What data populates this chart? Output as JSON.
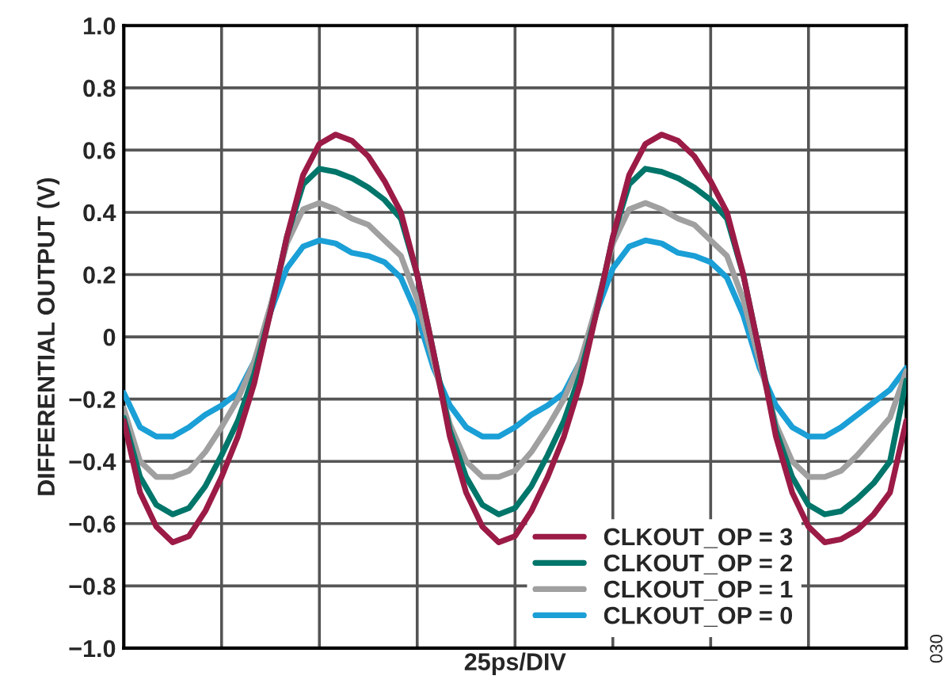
{
  "chart_data": {
    "type": "line",
    "xlabel": "25ps/DIV",
    "ylabel": "DIFFERENTIAL OUTPUT (V)",
    "annotations": [
      "030"
    ],
    "categories": [
      null,
      null,
      null,
      null,
      null,
      null,
      null,
      null,
      null,
      null,
      null,
      null,
      null,
      null,
      null,
      null,
      null,
      null,
      null,
      null,
      null,
      null,
      null,
      null,
      null,
      null,
      null,
      null,
      null,
      null,
      null,
      null,
      null,
      null,
      null,
      null,
      null,
      null,
      null,
      null,
      null,
      null,
      null,
      null,
      null,
      null,
      null,
      null,
      null
    ],
    "series": [
      {
        "name": "CLKOUT_OP = 3",
        "color": "#9b1b46",
        "values": [
          -0.27,
          -0.5,
          -0.61,
          -0.66,
          -0.64,
          -0.56,
          -0.45,
          -0.32,
          -0.15,
          0.08,
          0.32,
          0.52,
          0.62,
          0.65,
          0.63,
          0.58,
          0.5,
          0.4,
          0.2,
          -0.05,
          -0.32,
          -0.5,
          -0.61,
          -0.66,
          -0.64,
          -0.56,
          -0.45,
          -0.32,
          -0.15,
          0.08,
          0.32,
          0.52,
          0.62,
          0.65,
          0.63,
          0.58,
          0.5,
          0.4,
          0.2,
          -0.05,
          -0.32,
          -0.5,
          -0.61,
          -0.66,
          -0.65,
          -0.62,
          -0.57,
          -0.5,
          -0.27
        ]
      },
      {
        "name": "CLKOUT_OP = 2",
        "color": "#00756a",
        "values": [
          -0.26,
          -0.45,
          -0.54,
          -0.57,
          -0.55,
          -0.48,
          -0.38,
          -0.27,
          -0.12,
          0.08,
          0.32,
          0.49,
          0.54,
          0.53,
          0.51,
          0.48,
          0.44,
          0.38,
          0.2,
          -0.05,
          -0.3,
          -0.45,
          -0.54,
          -0.57,
          -0.55,
          -0.48,
          -0.38,
          -0.27,
          -0.12,
          0.08,
          0.32,
          0.49,
          0.54,
          0.53,
          0.51,
          0.48,
          0.44,
          0.38,
          0.2,
          -0.05,
          -0.3,
          -0.45,
          -0.54,
          -0.57,
          -0.56,
          -0.52,
          -0.47,
          -0.4,
          -0.14
        ]
      },
      {
        "name": "CLKOUT_OP = 1",
        "color": "#a0a0a0",
        "values": [
          -0.23,
          -0.4,
          -0.45,
          -0.45,
          -0.43,
          -0.37,
          -0.29,
          -0.2,
          -0.08,
          0.1,
          0.3,
          0.41,
          0.43,
          0.41,
          0.38,
          0.36,
          0.31,
          0.26,
          0.12,
          -0.08,
          -0.28,
          -0.4,
          -0.45,
          -0.45,
          -0.43,
          -0.37,
          -0.29,
          -0.2,
          -0.08,
          0.1,
          0.3,
          0.41,
          0.43,
          0.41,
          0.38,
          0.36,
          0.31,
          0.26,
          0.12,
          -0.08,
          -0.28,
          -0.4,
          -0.45,
          -0.45,
          -0.43,
          -0.38,
          -0.32,
          -0.26,
          -0.11
        ]
      },
      {
        "name": "CLKOUT_OP = 0",
        "color": "#1a9fd6",
        "values": [
          -0.18,
          -0.29,
          -0.32,
          -0.32,
          -0.29,
          -0.25,
          -0.22,
          -0.18,
          -0.08,
          0.08,
          0.22,
          0.29,
          0.31,
          0.3,
          0.27,
          0.26,
          0.24,
          0.19,
          0.07,
          -0.1,
          -0.22,
          -0.29,
          -0.32,
          -0.32,
          -0.29,
          -0.25,
          -0.22,
          -0.18,
          -0.08,
          0.08,
          0.22,
          0.29,
          0.31,
          0.3,
          0.27,
          0.26,
          0.24,
          0.19,
          0.07,
          -0.1,
          -0.22,
          -0.29,
          -0.32,
          -0.32,
          -0.29,
          -0.25,
          -0.21,
          -0.17,
          -0.1
        ]
      }
    ],
    "ylim": [
      -1.0,
      1.0
    ],
    "yticks": [
      {
        "value": -1.0,
        "label": "−1.0"
      },
      {
        "value": -0.8,
        "label": "−0.8"
      },
      {
        "value": -0.6,
        "label": "−0.6"
      },
      {
        "value": -0.4,
        "label": "−0.4"
      },
      {
        "value": -0.2,
        "label": "−0.2"
      },
      {
        "value": 0,
        "label": "0"
      },
      {
        "value": 0.2,
        "label": "0.2"
      },
      {
        "value": 0.4,
        "label": "0.4"
      },
      {
        "value": 0.6,
        "label": "0.6"
      },
      {
        "value": 0.8,
        "label": "0.8"
      },
      {
        "value": 1.0,
        "label": "1.0"
      }
    ],
    "tick_labels": "y",
    "grid": true,
    "legend": "bottom right",
    "marker": "none",
    "line_style": "solid"
  }
}
